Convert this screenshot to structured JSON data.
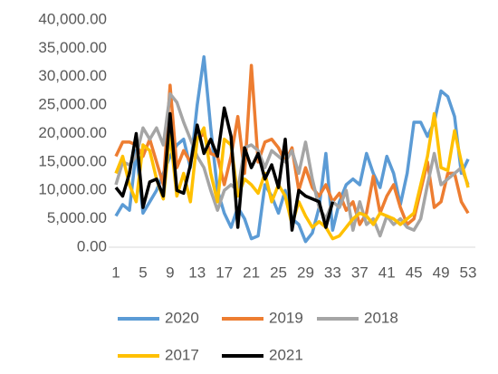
{
  "chart_data": {
    "type": "line",
    "x": [
      1,
      2,
      3,
      4,
      5,
      6,
      7,
      8,
      9,
      10,
      11,
      12,
      13,
      14,
      15,
      16,
      17,
      18,
      19,
      20,
      21,
      22,
      23,
      24,
      25,
      26,
      27,
      28,
      29,
      30,
      31,
      32,
      33,
      34,
      35,
      36,
      37,
      38,
      39,
      40,
      41,
      42,
      43,
      44,
      45,
      46,
      47,
      48,
      49,
      50,
      51,
      52,
      53
    ],
    "xlim": [
      1,
      53
    ],
    "xticks": [
      1,
      5,
      9,
      13,
      17,
      21,
      25,
      29,
      33,
      37,
      41,
      45,
      49,
      53
    ],
    "ylim": [
      0,
      40000
    ],
    "yticks": [
      {
        "value": 0,
        "label": "0.00"
      },
      {
        "value": 5000,
        "label": "5,000.00"
      },
      {
        "value": 10000,
        "label": "10,000.00"
      },
      {
        "value": 15000,
        "label": "15,000.00"
      },
      {
        "value": 20000,
        "label": "20,000.00"
      },
      {
        "value": 25000,
        "label": "25,000.00"
      },
      {
        "value": 30000,
        "label": "30,000.00"
      },
      {
        "value": 35000,
        "label": "35,000.00"
      },
      {
        "value": 40000,
        "label": "40,000.00"
      }
    ],
    "grid": false,
    "legend": "bottom",
    "series": [
      {
        "name": "2020",
        "color": "#5b9bd5",
        "values": [
          5500,
          7500,
          6500,
          17000,
          6000,
          8000,
          10000,
          13000,
          16000,
          18000,
          19000,
          14000,
          25000,
          33500,
          21000,
          10000,
          6000,
          3500,
          7000,
          5000,
          1500,
          2000,
          11000,
          9000,
          6000,
          10000,
          5000,
          4000,
          1000,
          2500,
          7000,
          16500,
          3000,
          8000,
          11000,
          12000,
          11000,
          16500,
          13000,
          10500,
          16000,
          13000,
          7500,
          13000,
          22000,
          22000,
          19500,
          22000,
          27500,
          26500,
          23000,
          13000,
          15500
        ]
      },
      {
        "name": "2019",
        "color": "#ed7d31",
        "values": [
          16000,
          18500,
          18500,
          18000,
          16000,
          19000,
          15000,
          11000,
          28500,
          14000,
          17000,
          15000,
          19000,
          20000,
          16500,
          16000,
          11000,
          16000,
          23000,
          13000,
          32000,
          15000,
          18500,
          19000,
          17500,
          15000,
          17500,
          10000,
          14000,
          10500,
          9000,
          11000,
          8000,
          9500,
          6500,
          8000,
          4000,
          6000,
          12500,
          6000,
          9000,
          11000,
          7000,
          4000,
          5000,
          10000,
          15000,
          7000,
          8000,
          13000,
          13000,
          8000,
          6000
        ]
      },
      {
        "name": "2018",
        "color": "#a5a5a5",
        "values": [
          11000,
          15000,
          14500,
          16000,
          21000,
          19000,
          21000,
          18000,
          27000,
          25500,
          22000,
          19000,
          16000,
          14000,
          10000,
          6500,
          10000,
          11000,
          10000,
          17500,
          18000,
          17000,
          14000,
          17000,
          16000,
          15000,
          17000,
          13000,
          18500,
          12000,
          7000,
          5000,
          8000,
          7000,
          10000,
          3000,
          8000,
          4000,
          5000,
          2000,
          5500,
          4000,
          5000,
          3500,
          3000,
          5000,
          11000,
          16500,
          11000,
          12000,
          13000,
          14000,
          11000
        ]
      },
      {
        "name": "2017",
        "color": "#ffc000",
        "values": [
          13000,
          16000,
          11000,
          8000,
          18000,
          17000,
          12000,
          8500,
          20000,
          9000,
          13000,
          8000,
          19000,
          21000,
          13000,
          8000,
          19000,
          18000,
          9000,
          12000,
          11000,
          9500,
          13000,
          8000,
          11000,
          9000,
          4000,
          8000,
          5500,
          3500,
          4500,
          3500,
          1500,
          2000,
          3500,
          5000,
          6000,
          5500,
          4000,
          6000,
          5500,
          5000,
          4000,
          5000,
          6000,
          11000,
          16000,
          23500,
          14000,
          13500,
          20500,
          15000,
          10500
        ]
      },
      {
        "name": "2021",
        "color": "#000000",
        "values": [
          10500,
          9000,
          13000,
          20000,
          7000,
          11500,
          12000,
          9000,
          23500,
          10000,
          9500,
          14500,
          21500,
          16500,
          19000,
          16000,
          24500,
          19500,
          3500,
          17500,
          14000,
          16500,
          12000,
          14500,
          10500,
          19000,
          3000,
          10000,
          9000,
          8500,
          8000,
          3500,
          8000,
          null,
          null,
          null,
          null,
          null,
          null,
          null,
          null,
          null,
          null,
          null,
          null,
          null,
          null,
          null,
          null,
          null,
          null,
          null,
          null
        ]
      }
    ]
  }
}
